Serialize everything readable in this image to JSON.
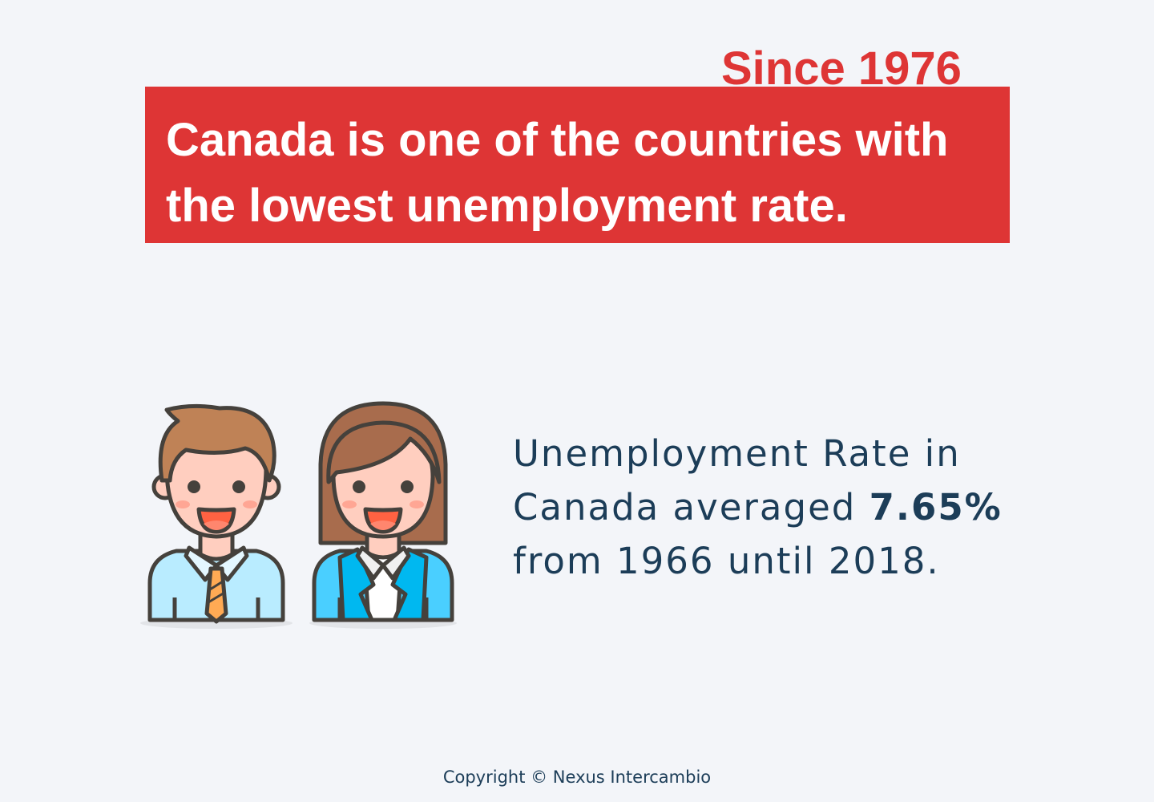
{
  "header": {
    "kicker": "Since 1976",
    "headline_line1": "Canada is one of the countries with",
    "headline_line2": "the lowest unemployment rate."
  },
  "illustration": {
    "icons": [
      "man-office-worker-icon",
      "woman-office-worker-icon"
    ]
  },
  "stat": {
    "line1": "Unemployment Rate in",
    "line2_prefix": "Canada averaged ",
    "value": "7.65%",
    "line3": "from 1966 until 2018."
  },
  "footer": {
    "copyright": "Copyright © Nexus Intercambio"
  },
  "colors": {
    "background": "#f3f5f9",
    "accent_red": "#de3535",
    "text_navy": "#1c3d58"
  }
}
